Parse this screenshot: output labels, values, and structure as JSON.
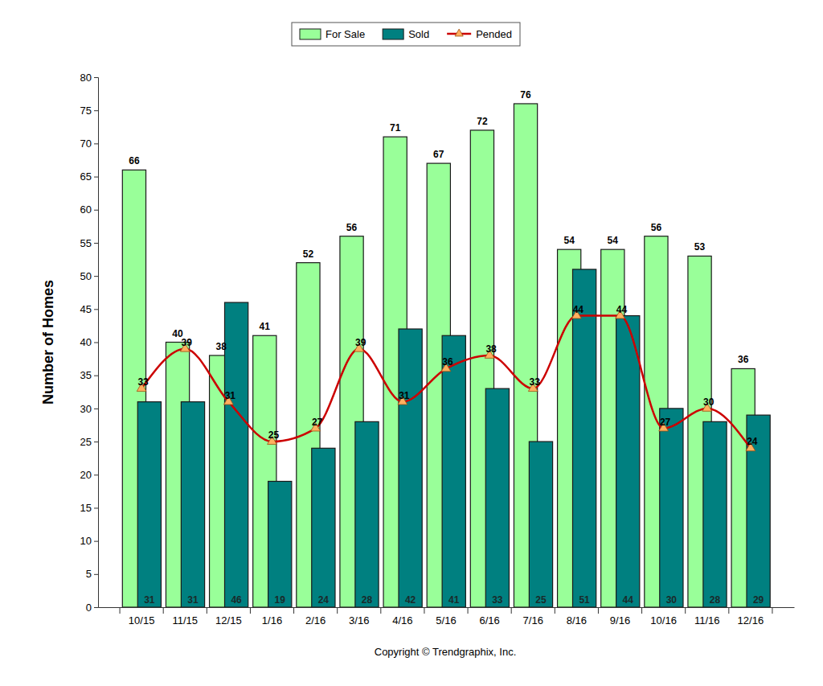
{
  "chart_data": {
    "type": "bar",
    "y_label": "Number of Homes",
    "annotations": [
      "Copyright © Trendgraphix, Inc."
    ],
    "categories": [
      "10/15",
      "11/15",
      "12/15",
      "1/16",
      "2/16",
      "3/16",
      "4/16",
      "5/16",
      "6/16",
      "7/16",
      "8/16",
      "9/16",
      "10/16",
      "11/16",
      "12/16"
    ],
    "series": [
      {
        "name": "For Sale",
        "type": "bar",
        "color": "#99ff99",
        "values": [
          66,
          40,
          38,
          41,
          52,
          56,
          71,
          67,
          72,
          76,
          54,
          54,
          56,
          53,
          36
        ]
      },
      {
        "name": "Sold",
        "type": "bar",
        "color": "#008080",
        "values": [
          31,
          31,
          46,
          19,
          24,
          28,
          42,
          41,
          33,
          25,
          51,
          44,
          30,
          28,
          29
        ]
      },
      {
        "name": "Pended",
        "type": "line",
        "color": "#cc0000",
        "marker": "triangle",
        "line_style": "solid",
        "values": [
          33,
          39,
          31,
          25,
          27,
          39,
          31,
          36,
          38,
          33,
          44,
          44,
          27,
          30,
          24
        ]
      }
    ],
    "ylim": [
      0,
      80
    ],
    "yticks": [
      0,
      5,
      10,
      15,
      20,
      25,
      30,
      35,
      40,
      45,
      50,
      55,
      60,
      65,
      70,
      75,
      80
    ],
    "grid": false,
    "legend": "top",
    "data_labels": true
  }
}
